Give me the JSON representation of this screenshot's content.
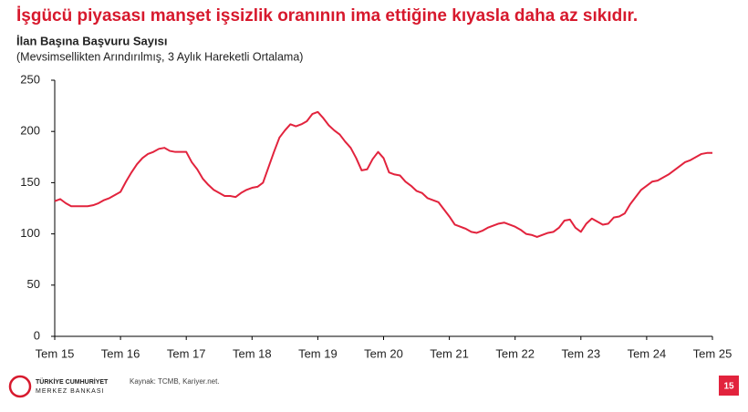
{
  "slide_title": "İşgücü piyasası manşet işsizlik oranının ima ettiğine kıyasla daha az sıkıdır.",
  "chart_data": {
    "type": "line",
    "title": "İlan Başına Başvuru Sayısı",
    "subtitle": "(Mevsimsellikten Arındırılmış, 3 Aylık Hareketli Ortalama)",
    "categories": [
      "Tem 15",
      null,
      null,
      null,
      null,
      null,
      null,
      null,
      null,
      null,
      null,
      null,
      "Tem 16",
      null,
      null,
      null,
      null,
      null,
      null,
      null,
      null,
      null,
      null,
      null,
      "Tem 17",
      null,
      null,
      null,
      null,
      null,
      null,
      null,
      null,
      null,
      null,
      null,
      "Tem 18",
      null,
      null,
      null,
      null,
      null,
      null,
      null,
      null,
      null,
      null,
      null,
      "Tem 19",
      null,
      null,
      null,
      null,
      null,
      null,
      null,
      null,
      null,
      null,
      null,
      "Tem 20",
      null,
      null,
      null,
      null,
      null,
      null,
      null,
      null,
      null,
      null,
      null,
      "Tem 21",
      null,
      null,
      null,
      null,
      null,
      null,
      null,
      null,
      null,
      null,
      null,
      "Tem 22",
      null,
      null,
      null,
      null,
      null,
      null,
      null,
      null,
      null,
      null,
      null,
      "Tem 23",
      null,
      null,
      null,
      null,
      null,
      null,
      null,
      null,
      null,
      null,
      null,
      "Tem 24",
      null,
      null,
      null,
      null,
      null,
      null,
      null,
      null,
      null,
      null,
      null,
      "Tem 25"
    ],
    "values": [
      132,
      134,
      130,
      127,
      127,
      127,
      127,
      128,
      130,
      133,
      135,
      138,
      141,
      151,
      160,
      168,
      174,
      178,
      180,
      183,
      184,
      181,
      180,
      180,
      180,
      170,
      163,
      154,
      148,
      143,
      140,
      137,
      137,
      136,
      140,
      143,
      145,
      146,
      150,
      165,
      180,
      194,
      201,
      207,
      205,
      207,
      210,
      217,
      219,
      213,
      206,
      201,
      197,
      190,
      184,
      174,
      162,
      163,
      173,
      180,
      174,
      160,
      158,
      157,
      151,
      147,
      142,
      140,
      135,
      133,
      131,
      124,
      117,
      109,
      107,
      105,
      102,
      101,
      103,
      106,
      108,
      110,
      111,
      109,
      107,
      104,
      100,
      99,
      97,
      99,
      101,
      102,
      106,
      113,
      114,
      106,
      102,
      110,
      115,
      112,
      109,
      110,
      116,
      117,
      120,
      129,
      136,
      143,
      147,
      151,
      152,
      155,
      158,
      162,
      166,
      170,
      172,
      175,
      178,
      179,
      179
    ],
    "color": "#e2233d",
    "ylim": [
      0,
      250
    ],
    "yticks": [
      0,
      50,
      100,
      150,
      200,
      250
    ],
    "grid": false
  },
  "footer": {
    "bank_name": [
      "TÜRKİYE CUMHURİYET",
      "MERKEZ BANKASI"
    ],
    "source": "Kaynak: TCMB, Kariyer.net.",
    "page_number": 15
  }
}
